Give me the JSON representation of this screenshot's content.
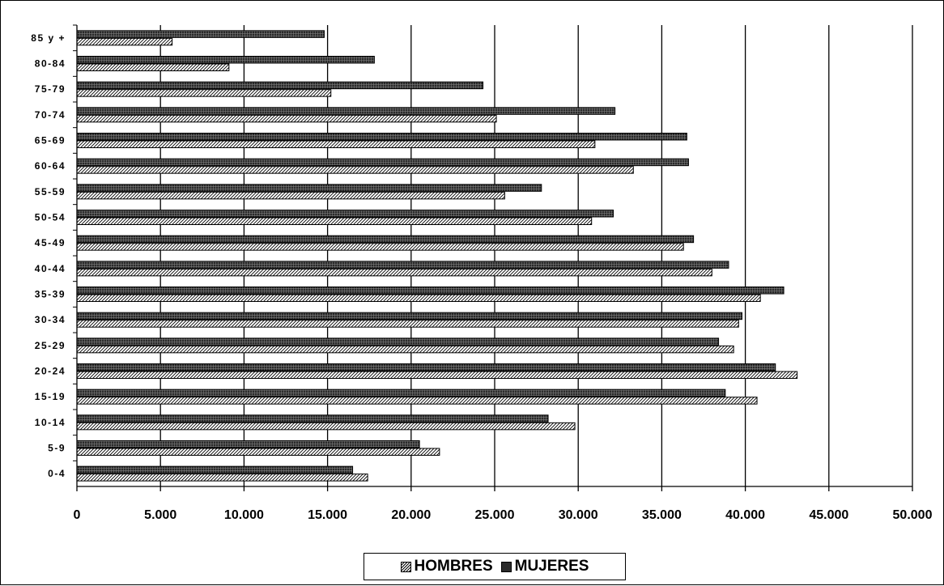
{
  "chart_data": {
    "type": "bar",
    "orientation": "horizontal",
    "categories": [
      "0-4",
      "5-9",
      "10-14",
      "15-19",
      "20-24",
      "25-29",
      "30-34",
      "35-39",
      "40-44",
      "45-49",
      "50-54",
      "55-59",
      "60-64",
      "65-69",
      "70-74",
      "75-79",
      "80-84",
      "85 y +"
    ],
    "series": [
      {
        "name": "HOMBRES",
        "values": [
          17400,
          21700,
          29800,
          40700,
          43100,
          39300,
          39600,
          40900,
          38000,
          36300,
          30800,
          25600,
          33300,
          31000,
          25100,
          15200,
          9100,
          5700
        ],
        "color": "#ffffff",
        "pattern": "diagonal-hatch"
      },
      {
        "name": "MUJERES",
        "values": [
          16500,
          20500,
          28200,
          38800,
          41800,
          38400,
          39800,
          42300,
          39000,
          36900,
          32100,
          27800,
          36600,
          36500,
          32200,
          24300,
          17800,
          14800
        ],
        "color": "#3a3a3a",
        "pattern": "dark-crosshatch"
      }
    ],
    "x_ticks": [
      "0",
      "5.000",
      "10.000",
      "15.000",
      "20.000",
      "25.000",
      "30.000",
      "35.000",
      "40.000",
      "45.000",
      "50.000"
    ],
    "xlim": [
      0,
      50000
    ],
    "grid": "vertical",
    "legend_position": "bottom-center",
    "title": "",
    "xlabel": "",
    "ylabel": ""
  }
}
